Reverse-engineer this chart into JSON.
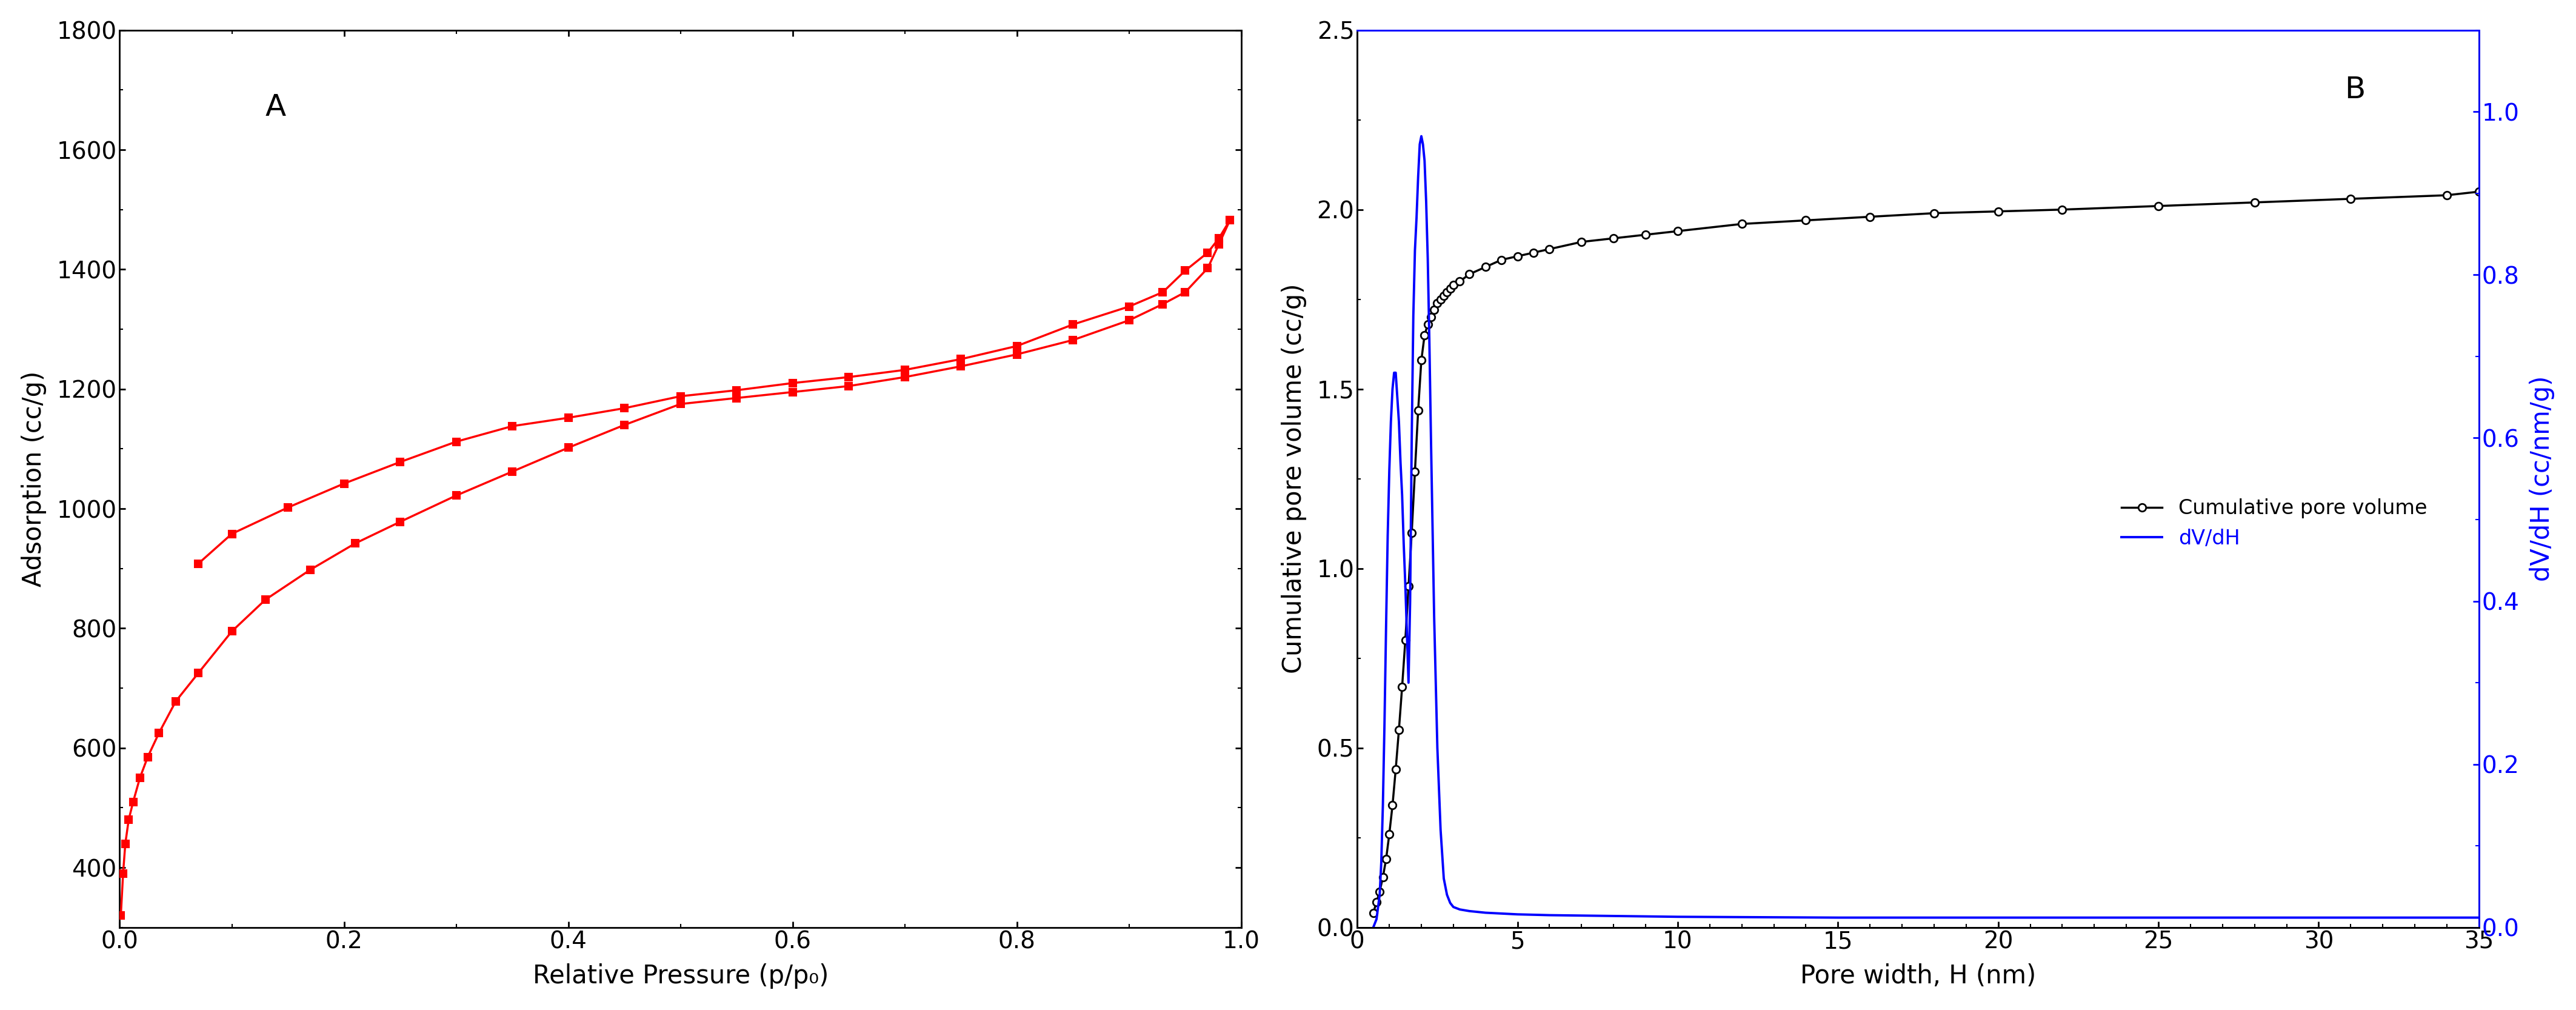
{
  "panel_A": {
    "label": "A",
    "xlabel": "Relative Pressure (p/p₀)",
    "ylabel": "Adsorption (cc/g)",
    "xlim": [
      0.0,
      1.0
    ],
    "ylim": [
      300,
      1800
    ],
    "yticks": [
      400,
      600,
      800,
      1000,
      1200,
      1400,
      1600,
      1800
    ],
    "xticks": [
      0.0,
      0.2,
      0.4,
      0.6,
      0.8,
      1.0
    ],
    "color": "#FF0000",
    "adsorption_x": [
      0.001,
      0.003,
      0.005,
      0.008,
      0.012,
      0.018,
      0.025,
      0.035,
      0.05,
      0.07,
      0.1,
      0.13,
      0.17,
      0.21,
      0.25,
      0.3,
      0.35,
      0.4,
      0.45,
      0.5,
      0.55,
      0.6,
      0.65,
      0.7,
      0.75,
      0.8,
      0.85,
      0.9,
      0.93,
      0.95,
      0.97,
      0.98,
      0.99
    ],
    "adsorption_y": [
      320,
      390,
      440,
      480,
      510,
      550,
      585,
      625,
      678,
      725,
      795,
      848,
      898,
      942,
      978,
      1022,
      1062,
      1102,
      1140,
      1175,
      1185,
      1195,
      1205,
      1220,
      1238,
      1258,
      1282,
      1315,
      1342,
      1362,
      1402,
      1442,
      1483
    ],
    "desorption_x": [
      0.99,
      0.98,
      0.97,
      0.95,
      0.93,
      0.9,
      0.85,
      0.8,
      0.75,
      0.7,
      0.65,
      0.6,
      0.55,
      0.5,
      0.45,
      0.4,
      0.35,
      0.3,
      0.25,
      0.2,
      0.15,
      0.1,
      0.07
    ],
    "desorption_y": [
      1483,
      1452,
      1428,
      1398,
      1362,
      1338,
      1308,
      1272,
      1250,
      1232,
      1220,
      1210,
      1198,
      1188,
      1168,
      1152,
      1138,
      1112,
      1078,
      1042,
      1002,
      958,
      908
    ]
  },
  "panel_B": {
    "label": "B",
    "xlabel": "Pore width, H (nm)",
    "ylabel_left": "Cumulative pore volume (cc/g)",
    "ylabel_right": "dV/dH (cc/nm/g)",
    "xlim": [
      0,
      35
    ],
    "ylim_left": [
      0.0,
      2.5
    ],
    "ylim_right": [
      0.0,
      1.1
    ],
    "yticks_left": [
      0.0,
      0.5,
      1.0,
      1.5,
      2.0,
      2.5
    ],
    "yticks_right": [
      0.0,
      0.2,
      0.4,
      0.6,
      0.8,
      1.0
    ],
    "xticks": [
      0,
      5,
      10,
      15,
      20,
      25,
      30,
      35
    ],
    "color_cum": "#000000",
    "color_dvdh": "#0000FF",
    "cum_x": [
      0.5,
      0.6,
      0.7,
      0.8,
      0.9,
      1.0,
      1.1,
      1.2,
      1.3,
      1.4,
      1.5,
      1.6,
      1.7,
      1.8,
      1.9,
      2.0,
      2.1,
      2.2,
      2.3,
      2.4,
      2.5,
      2.6,
      2.7,
      2.8,
      2.9,
      3.0,
      3.2,
      3.5,
      4.0,
      4.5,
      5.0,
      5.5,
      6.0,
      7.0,
      8.0,
      9.0,
      10.0,
      12.0,
      14.0,
      16.0,
      18.0,
      20.0,
      22.0,
      25.0,
      28.0,
      31.0,
      34.0,
      35.0
    ],
    "cum_y": [
      0.04,
      0.07,
      0.1,
      0.14,
      0.19,
      0.26,
      0.34,
      0.44,
      0.55,
      0.67,
      0.8,
      0.95,
      1.1,
      1.27,
      1.44,
      1.58,
      1.65,
      1.68,
      1.7,
      1.72,
      1.74,
      1.75,
      1.76,
      1.77,
      1.78,
      1.79,
      1.8,
      1.82,
      1.84,
      1.86,
      1.87,
      1.88,
      1.89,
      1.91,
      1.92,
      1.93,
      1.94,
      1.96,
      1.97,
      1.98,
      1.99,
      1.995,
      2.0,
      2.01,
      2.02,
      2.03,
      2.04,
      2.05
    ],
    "dvdh_x": [
      0.5,
      0.6,
      0.7,
      0.75,
      0.8,
      0.85,
      0.9,
      0.95,
      1.0,
      1.05,
      1.1,
      1.15,
      1.2,
      1.25,
      1.3,
      1.35,
      1.4,
      1.45,
      1.5,
      1.55,
      1.6,
      1.65,
      1.7,
      1.75,
      1.8,
      1.85,
      1.9,
      1.95,
      2.0,
      2.05,
      2.1,
      2.15,
      2.2,
      2.25,
      2.3,
      2.4,
      2.5,
      2.6,
      2.7,
      2.8,
      2.9,
      3.0,
      3.2,
      3.5,
      4.0,
      5.0,
      6.0,
      8.0,
      10.0,
      15.0,
      20.0,
      25.0,
      30.0,
      35.0
    ],
    "dvdh_y": [
      0.0,
      0.01,
      0.04,
      0.08,
      0.15,
      0.25,
      0.37,
      0.48,
      0.56,
      0.62,
      0.66,
      0.68,
      0.68,
      0.65,
      0.62,
      0.57,
      0.53,
      0.47,
      0.42,
      0.36,
      0.3,
      0.4,
      0.6,
      0.75,
      0.83,
      0.87,
      0.92,
      0.96,
      0.97,
      0.96,
      0.94,
      0.89,
      0.82,
      0.72,
      0.6,
      0.38,
      0.22,
      0.12,
      0.06,
      0.04,
      0.03,
      0.025,
      0.022,
      0.02,
      0.018,
      0.016,
      0.015,
      0.014,
      0.013,
      0.012,
      0.012,
      0.012,
      0.012,
      0.012
    ],
    "legend_cum": "Cumulative pore volume",
    "legend_dvdh": "dV/dH"
  }
}
